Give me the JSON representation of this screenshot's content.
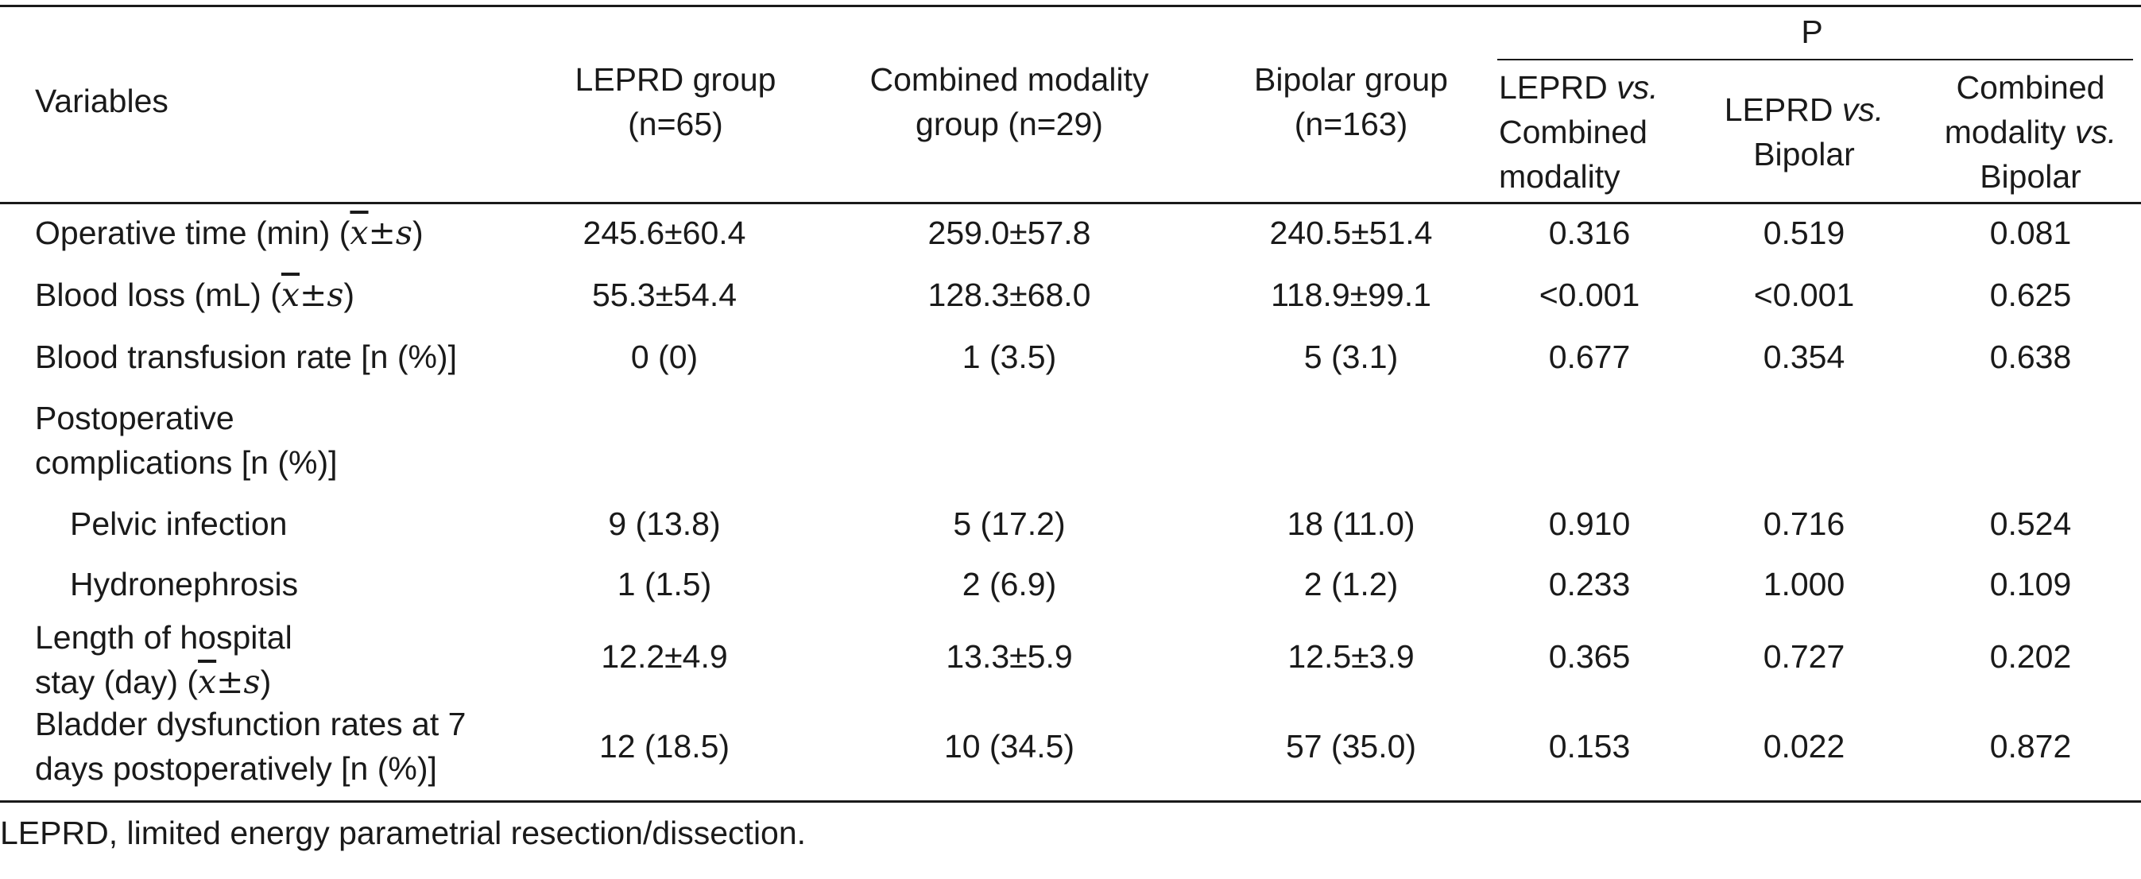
{
  "headers": {
    "variables": "Variables",
    "leprd_group": [
      "LEPRD group",
      "(n=65)"
    ],
    "combined_group": [
      "Combined modality",
      "group (n=29)"
    ],
    "bipolar_group": [
      "Bipolar group",
      "(n=163)"
    ],
    "p": "P",
    "p_cols": [
      {
        "lines": [
          [
            "LEPRD ",
            "vs."
          ],
          [
            "Combined",
            ""
          ],
          [
            "modality",
            ""
          ]
        ]
      },
      {
        "lines": [
          [
            "LEPRD ",
            "vs."
          ],
          [
            "Bipolar",
            ""
          ]
        ]
      },
      {
        "lines": [
          [
            "Combined",
            ""
          ],
          [
            "modality ",
            "vs."
          ],
          [
            "Bipolar",
            ""
          ]
        ]
      }
    ]
  },
  "rows": [
    {
      "label": [
        "Operative time (min) ("
      ],
      "stat": true,
      "values": [
        "245.6±60.4",
        "259.0±57.8",
        "240.5±51.4",
        "0.316",
        "0.519",
        "0.081"
      ]
    },
    {
      "label": [
        "Blood loss (mL) ("
      ],
      "stat": true,
      "values": [
        "55.3±54.4",
        "128.3±68.0",
        "118.9±99.1",
        "<0.001",
        "<0.001",
        "0.625"
      ]
    },
    {
      "label": [
        "Blood transfusion rate [n (%)]"
      ],
      "stat": false,
      "values": [
        "0 (0)",
        "1 (3.5)",
        "5 (3.1)",
        "0.677",
        "0.354",
        "0.638"
      ]
    },
    {
      "label": [
        "Postoperative",
        "complications [n (%)]"
      ],
      "stat": false,
      "values": [
        "",
        "",
        "",
        "",
        "",
        ""
      ]
    },
    {
      "label": [
        "Pelvic infection"
      ],
      "stat": false,
      "indent": true,
      "values": [
        "9 (13.8)",
        "5 (17.2)",
        "18 (11.0)",
        "0.910",
        "0.716",
        "0.524"
      ]
    },
    {
      "label": [
        "Hydronephrosis"
      ],
      "stat": false,
      "indent": true,
      "values": [
        "1 (1.5)",
        "2 (6.9)",
        "2 (1.2)",
        "0.233",
        "1.000",
        "0.109"
      ]
    },
    {
      "label": [
        "Length of hospital",
        "stay (day) ("
      ],
      "stat": true,
      "values": [
        "12.2±4.9",
        "13.3±5.9",
        "12.5±3.9",
        "0.365",
        "0.727",
        "0.202"
      ]
    },
    {
      "label": [
        "Bladder dysfunction rates at 7",
        "days postoperatively [n (%)]"
      ],
      "stat": false,
      "values": [
        "12 (18.5)",
        "10 (34.5)",
        "57 (35.0)",
        "0.153",
        "0.022",
        "0.872"
      ]
    }
  ],
  "stat_notation": {
    "mean": "x",
    "pm": "±",
    "sd": "s",
    "close": ")"
  },
  "footnote": "LEPRD, limited energy parametrial resection/dissection."
}
